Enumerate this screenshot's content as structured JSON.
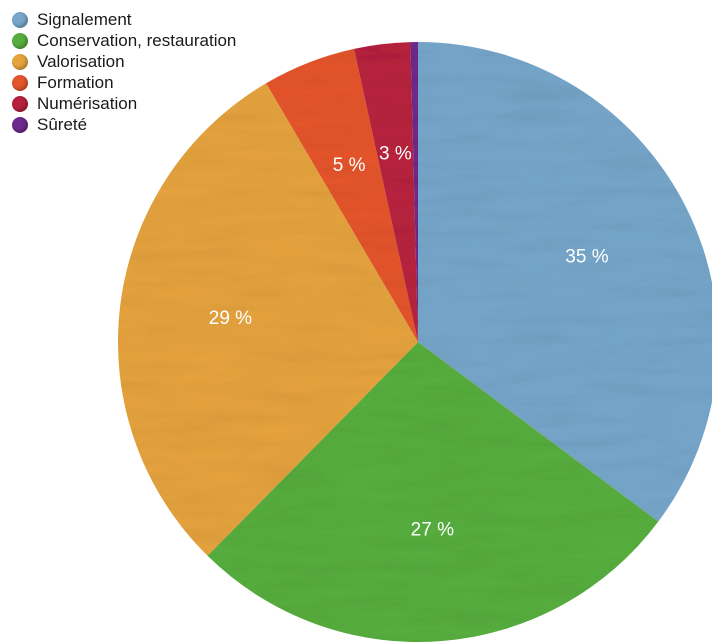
{
  "chart_data": {
    "type": "pie",
    "title": "",
    "legend_position": "top-left",
    "slices": [
      {
        "label": "Signalement",
        "value": 35,
        "value_label": "35 %",
        "color": "#76A6CA"
      },
      {
        "label": "Conservation, restauration",
        "value": 27,
        "value_label": "27 %",
        "color": "#57AE3E"
      },
      {
        "label": "Valorisation",
        "value": 29,
        "value_label": "29 %",
        "color": "#E6A33E"
      },
      {
        "label": "Formation",
        "value": 5,
        "value_label": "5 %",
        "color": "#E5552C"
      },
      {
        "label": "Numérisation",
        "value": 3,
        "value_label": "3 %",
        "color": "#B8213E"
      },
      {
        "label": "Sûreté",
        "value": 0.4,
        "value_label": "",
        "color": "#6E2A8C"
      }
    ]
  }
}
